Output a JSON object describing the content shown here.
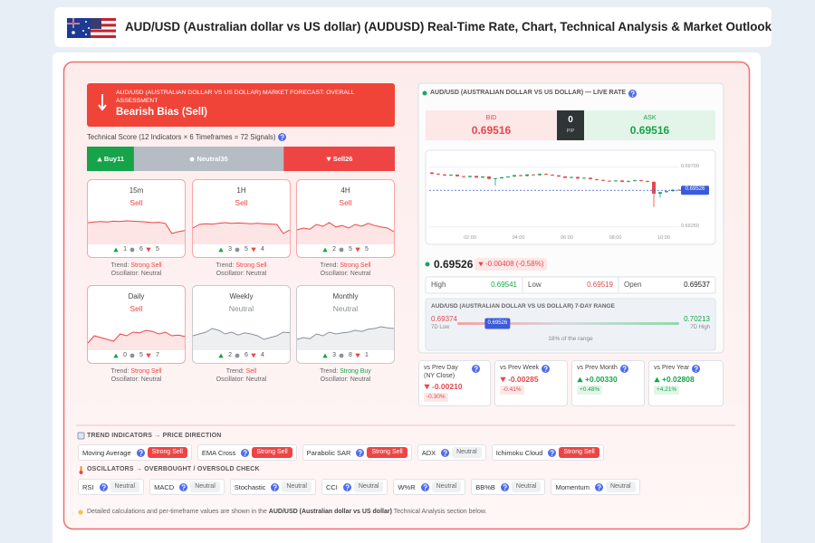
{
  "header": {
    "title": "AUD/USD (Australian dollar vs US dollar) (AUDUSD) Real-Time Rate, Chart, Technical Analysis & Market Outlook"
  },
  "forecast": {
    "label": "AUD/USD (AUSTRALIAN DOLLAR VS US DOLLAR) MARKET FORECAST: OVERALL ASSESSMENT",
    "bias": "Bearish Bias (Sell)"
  },
  "score": {
    "title": "Technical Score (12 Indicators × 6 Timeframes = 72 Signals)",
    "segments": [
      {
        "label": "Buy",
        "value": 11,
        "color": "#16a34a"
      },
      {
        "label": "Neutral",
        "value": 35,
        "color": "#b6bcc4"
      },
      {
        "label": "Sell",
        "value": 26,
        "color": "#ef4444"
      }
    ]
  },
  "timeframes": [
    {
      "name": "15m",
      "signal": "Sell",
      "color": "#ef4444",
      "buy": 1,
      "neutral": 6,
      "sell": 5,
      "trend_label": "Trend:",
      "trend": "Strong Sell",
      "trend_color": "#ef4444",
      "osc_label": "Oscillator:",
      "oscillator": "Neutral",
      "spark": [
        60,
        62,
        63,
        62,
        64,
        63,
        65,
        64,
        63,
        62,
        60,
        61,
        58,
        30,
        35,
        38
      ]
    },
    {
      "name": "1H",
      "signal": "Sell",
      "color": "#ef4444",
      "buy": 3,
      "neutral": 5,
      "sell": 4,
      "trend_label": "Trend:",
      "trend": "Strong Sell",
      "trend_color": "#ef4444",
      "osc_label": "Oscillator:",
      "oscillator": "Neutral",
      "spark": [
        45,
        55,
        57,
        56,
        58,
        60,
        58,
        59,
        58,
        57,
        58,
        57,
        56,
        55,
        30,
        40
      ]
    },
    {
      "name": "4H",
      "signal": "Sell",
      "color": "#ef4444",
      "buy": 2,
      "neutral": 5,
      "sell": 5,
      "trend_label": "Trend:",
      "trend": "Strong Sell",
      "trend_color": "#ef4444",
      "osc_label": "Oscillator:",
      "oscillator": "Neutral",
      "spark": [
        40,
        45,
        42,
        55,
        50,
        60,
        48,
        52,
        45,
        55,
        50,
        58,
        52,
        48,
        45,
        35
      ]
    },
    {
      "name": "Daily",
      "signal": "Sell",
      "color": "#ef4444",
      "buy": 0,
      "neutral": 5,
      "sell": 7,
      "trend_label": "Trend:",
      "trend": "Strong Sell",
      "trend_color": "#ef4444",
      "osc_label": "Oscillator:",
      "oscillator": "Neutral",
      "spark": [
        20,
        40,
        35,
        30,
        25,
        45,
        40,
        50,
        48,
        55,
        52,
        45,
        50,
        40,
        42,
        38
      ]
    },
    {
      "name": "Weekly",
      "signal": "Neutral",
      "color": "#8a9099",
      "buy": 2,
      "neutral": 6,
      "sell": 4,
      "trend_label": "Trend:",
      "trend": "Sell",
      "trend_color": "#ef4444",
      "osc_label": "Oscillator:",
      "oscillator": "Neutral",
      "spark": [
        40,
        45,
        50,
        60,
        55,
        45,
        50,
        42,
        48,
        45,
        40,
        30,
        35,
        40,
        50,
        48
      ]
    },
    {
      "name": "Monthly",
      "signal": "Neutral",
      "color": "#8a9099",
      "buy": 3,
      "neutral": 8,
      "sell": 1,
      "trend_label": "Trend:",
      "trend": "Strong Buy",
      "trend_color": "#16a34a",
      "osc_label": "Oscillator:",
      "oscillator": "Neutral",
      "spark": [
        30,
        35,
        32,
        45,
        40,
        50,
        45,
        48,
        50,
        55,
        52,
        58,
        60,
        65,
        62,
        60
      ]
    }
  ],
  "live": {
    "title": "AUD/USD (AUSTRALIAN DOLLAR VS US DOLLAR) — LIVE RATE",
    "bid_label": "BID",
    "bid": 0.69516,
    "spread": 0,
    "spread_unit": "PIP",
    "ask_label": "ASK",
    "ask": 0.69516,
    "chart": {
      "ylim": [
        0.692,
        0.6976
      ],
      "yticks": [
        {
          "value": 0.697,
          "label": "0.69700"
        },
        {
          "value": 0.6925,
          "label": "0.69250"
        }
      ],
      "xlabels": [
        "02:00",
        "04:00",
        "06:00",
        "08:00",
        "10:00"
      ],
      "candles": [
        {
          "o": 0.6966,
          "h": 0.69664,
          "l": 0.69646,
          "c": 0.6965
        },
        {
          "o": 0.6965,
          "h": 0.69656,
          "l": 0.69641,
          "c": 0.69645
        },
        {
          "o": 0.69645,
          "h": 0.6965,
          "l": 0.69634,
          "c": 0.69638
        },
        {
          "o": 0.69638,
          "h": 0.69648,
          "l": 0.69634,
          "c": 0.69644
        },
        {
          "o": 0.69644,
          "h": 0.69647,
          "l": 0.69628,
          "c": 0.69632
        },
        {
          "o": 0.69632,
          "h": 0.69636,
          "l": 0.69622,
          "c": 0.69626
        },
        {
          "o": 0.69626,
          "h": 0.69638,
          "l": 0.69622,
          "c": 0.69634
        },
        {
          "o": 0.69634,
          "h": 0.69637,
          "l": 0.69618,
          "c": 0.69622
        },
        {
          "o": 0.69622,
          "h": 0.69634,
          "l": 0.69618,
          "c": 0.6963
        },
        {
          "o": 0.6963,
          "h": 0.69633,
          "l": 0.69608,
          "c": 0.69612
        },
        {
          "o": 0.69612,
          "h": 0.6962,
          "l": 0.6956,
          "c": 0.69616
        },
        {
          "o": 0.69616,
          "h": 0.69628,
          "l": 0.69612,
          "c": 0.69624
        },
        {
          "o": 0.69624,
          "h": 0.69634,
          "l": 0.6962,
          "c": 0.6963
        },
        {
          "o": 0.6963,
          "h": 0.69644,
          "l": 0.69626,
          "c": 0.6964
        },
        {
          "o": 0.6964,
          "h": 0.69644,
          "l": 0.6963,
          "c": 0.69634
        },
        {
          "o": 0.69634,
          "h": 0.69649,
          "l": 0.6963,
          "c": 0.69645
        },
        {
          "o": 0.69645,
          "h": 0.69649,
          "l": 0.69636,
          "c": 0.6964
        },
        {
          "o": 0.6964,
          "h": 0.69654,
          "l": 0.69636,
          "c": 0.6965
        },
        {
          "o": 0.6965,
          "h": 0.69654,
          "l": 0.6964,
          "c": 0.69644
        },
        {
          "o": 0.69644,
          "h": 0.69648,
          "l": 0.69634,
          "c": 0.69638
        },
        {
          "o": 0.69638,
          "h": 0.69642,
          "l": 0.69626,
          "c": 0.6963
        },
        {
          "o": 0.6963,
          "h": 0.69634,
          "l": 0.69616,
          "c": 0.6962
        },
        {
          "o": 0.6962,
          "h": 0.6963,
          "l": 0.69616,
          "c": 0.69626
        },
        {
          "o": 0.69626,
          "h": 0.6963,
          "l": 0.69611,
          "c": 0.69615
        },
        {
          "o": 0.69615,
          "h": 0.69624,
          "l": 0.69611,
          "c": 0.6962
        },
        {
          "o": 0.6962,
          "h": 0.69624,
          "l": 0.69606,
          "c": 0.6961
        },
        {
          "o": 0.6961,
          "h": 0.69614,
          "l": 0.696,
          "c": 0.69604
        },
        {
          "o": 0.69604,
          "h": 0.69608,
          "l": 0.69594,
          "c": 0.69598
        },
        {
          "o": 0.69598,
          "h": 0.69602,
          "l": 0.6959,
          "c": 0.69594
        },
        {
          "o": 0.69594,
          "h": 0.69604,
          "l": 0.6959,
          "c": 0.696
        },
        {
          "o": 0.696,
          "h": 0.69604,
          "l": 0.69586,
          "c": 0.6959
        },
        {
          "o": 0.6959,
          "h": 0.696,
          "l": 0.69586,
          "c": 0.69596
        },
        {
          "o": 0.69596,
          "h": 0.69606,
          "l": 0.69592,
          "c": 0.69602
        },
        {
          "o": 0.69602,
          "h": 0.69606,
          "l": 0.69592,
          "c": 0.69596
        },
        {
          "o": 0.69596,
          "h": 0.696,
          "l": 0.69586,
          "c": 0.6959
        },
        {
          "o": 0.6959,
          "h": 0.69594,
          "l": 0.694,
          "c": 0.695
        },
        {
          "o": 0.695,
          "h": 0.69516,
          "l": 0.6947,
          "c": 0.69512
        },
        {
          "o": 0.69512,
          "h": 0.69524,
          "l": 0.69508,
          "c": 0.6952
        },
        {
          "o": 0.6952,
          "h": 0.69534,
          "l": 0.69516,
          "c": 0.6953
        },
        {
          "o": 0.6953,
          "h": 0.69534,
          "l": 0.69522,
          "c": 0.69526
        }
      ]
    },
    "price": 0.69526,
    "change": "-0.00408 (-0.58%)",
    "hlo": [
      {
        "label": "High",
        "value": 0.69541,
        "color": "#16a34a"
      },
      {
        "label": "Low",
        "value": 0.69519,
        "color": "#e5484d"
      },
      {
        "label": "Open",
        "value": 0.69537,
        "color": "#222222"
      }
    ],
    "range": {
      "title": "AUD/USD (AUSTRALIAN DOLLAR VS US DOLLAR) 7-DAY RANGE",
      "low": 0.69374,
      "low_label": "7D Low",
      "high": 0.70213,
      "high_label": "7D High",
      "current": 0.69526,
      "note": "18% of the range"
    }
  },
  "changes": [
    {
      "label": "vs Prev Day (NY Close)",
      "value": "-0.00210",
      "pct": "-0.30%",
      "dir": "down"
    },
    {
      "label": "vs Prev Week",
      "value": "-0.00285",
      "pct": "-0.41%",
      "dir": "down"
    },
    {
      "label": "vs Prev Month",
      "value": "+0.00330",
      "pct": "+0.48%",
      "dir": "up"
    },
    {
      "label": "vs Prev Year",
      "value": "+0.02808",
      "pct": "+4.21%",
      "dir": "up"
    }
  ],
  "trend_section": {
    "title": "TREND INDICATORS → PRICE DIRECTION",
    "items": [
      {
        "name": "Moving Average",
        "signal": "Strong Sell",
        "color": "#ef4444",
        "text_color": "#ffffff"
      },
      {
        "name": "EMA Cross",
        "signal": "Strong Sell",
        "color": "#ef4444",
        "text_color": "#ffffff"
      },
      {
        "name": "Parabolic SAR",
        "signal": "Strong Sell",
        "color": "#ef4444",
        "text_color": "#ffffff"
      },
      {
        "name": "ADX",
        "signal": "Neutral",
        "color": "#eef0f2",
        "text_color": "#666666"
      },
      {
        "name": "Ichimoku Cloud",
        "signal": "Strong Sell",
        "color": "#ef4444",
        "text_color": "#ffffff"
      }
    ]
  },
  "osc_section": {
    "title": "OSCILLATORS → OVERBOUGHT / OVERSOLD CHECK",
    "items": [
      {
        "name": "RSI",
        "signal": "Neutral",
        "color": "#eef0f2",
        "text_color": "#666666"
      },
      {
        "name": "MACD",
        "signal": "Neutral",
        "color": "#eef0f2",
        "text_color": "#666666"
      },
      {
        "name": "Stochastic",
        "signal": "Neutral",
        "color": "#eef0f2",
        "text_color": "#666666"
      },
      {
        "name": "CCI",
        "signal": "Neutral",
        "color": "#eef0f2",
        "text_color": "#666666"
      },
      {
        "name": "W%R",
        "signal": "Neutral",
        "color": "#eef0f2",
        "text_color": "#666666"
      },
      {
        "name": "BB%B",
        "signal": "Neutral",
        "color": "#eef0f2",
        "text_color": "#666666"
      },
      {
        "name": "Momentum",
        "signal": "Neutral",
        "color": "#eef0f2",
        "text_color": "#666666"
      }
    ]
  },
  "note": {
    "before": "Detailed calculations and per-timeframe values are shown in the",
    "bold": "AUD/USD (Australian dollar vs US dollar)",
    "after": "Technical Analysis section below."
  }
}
